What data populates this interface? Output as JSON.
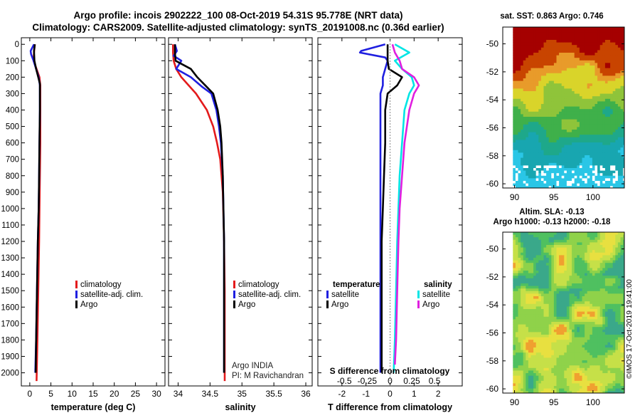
{
  "figure": {
    "title_line1": "Argo profile: incois 2902222_100 08-Oct-2019 54.31S 95.778E (NRT data)",
    "title_line2": "Climatology: CARS2009. Satellite-adjusted climatology: synTS_20191008.nc (0.36d earlier)",
    "sst_title": "sat. SST: 0.863 Argo: 0.746",
    "sla_title1": "Altim. SLA: -0.13",
    "sla_title2": "Argo h1000: -0.13 h2000: -0.18",
    "credit": "©IMOS 17-Oct-2019 19:41:00",
    "argo_note1": "Argo INDIA",
    "argo_note2": "PI: M Ravichandran"
  },
  "colors": {
    "climatology": "#e31a1c",
    "satellite": "#1f1fe0",
    "argo": "#000000",
    "satellite_salinity": "#00e5e5",
    "argo_salinity": "#e01fe0"
  },
  "chart_data": [
    {
      "type": "line",
      "name": "temperature-profile",
      "xlabel": "temperature (deg C)",
      "ylabel": "",
      "xlim": [
        -2,
        32
      ],
      "ylim": [
        2080,
        -40
      ],
      "xticks": [
        0,
        5,
        10,
        15,
        20,
        25,
        30
      ],
      "yticks": [
        0,
        100,
        200,
        300,
        400,
        500,
        600,
        700,
        800,
        900,
        1000,
        1100,
        1200,
        1300,
        1400,
        1500,
        1600,
        1700,
        1800,
        1900,
        2000
      ],
      "legend": [
        "climatology",
        "satellite-adj. clim.",
        "Argo"
      ],
      "series": [
        {
          "name": "climatology",
          "color_key": "climatology",
          "depth": [
            0,
            50,
            100,
            150,
            200,
            250,
            300,
            400,
            600,
            800,
            1000,
            1200,
            1500,
            1800,
            2050
          ],
          "values": [
            1.2,
            1.0,
            0.9,
            1.6,
            2.3,
            2.5,
            2.5,
            2.5,
            2.5,
            2.4,
            2.3,
            2.2,
            2.0,
            1.8,
            1.6
          ]
        },
        {
          "name": "satellite-adj. clim.",
          "color_key": "satellite",
          "depth": [
            0,
            40,
            60,
            100,
            150,
            200,
            250,
            300,
            400,
            600,
            800,
            1000,
            1200,
            1500,
            1800,
            2000
          ],
          "values": [
            1.0,
            0.2,
            0.3,
            0.9,
            1.5,
            2.1,
            2.4,
            2.4,
            2.4,
            2.3,
            2.2,
            2.1,
            1.9,
            1.7,
            1.5,
            1.3
          ]
        },
        {
          "name": "Argo",
          "color_key": "argo",
          "depth": [
            0,
            40,
            100,
            150,
            200,
            240,
            300,
            400,
            600,
            800,
            1000,
            1200,
            1500,
            1800,
            2000
          ],
          "values": [
            1.2,
            1.0,
            1.1,
            1.5,
            2.0,
            2.4,
            2.4,
            2.4,
            2.3,
            2.2,
            2.1,
            1.9,
            1.7,
            1.5,
            1.4
          ]
        }
      ]
    },
    {
      "type": "line",
      "name": "salinity-profile",
      "xlabel": "salinity",
      "xlim": [
        33.85,
        36.1
      ],
      "ylim": [
        2080,
        -40
      ],
      "xticks": [
        34,
        34.5,
        35,
        35.5,
        36
      ],
      "xticklabels": [
        "34",
        "34.5",
        "35",
        "35.5",
        "36"
      ],
      "legend": [
        "climatology",
        "satellite-adj. clim.",
        "Argo"
      ],
      "series": [
        {
          "name": "climatology",
          "color_key": "climatology",
          "depth": [
            0,
            50,
            100,
            150,
            200,
            300,
            400,
            500,
            600,
            700,
            900,
            1200,
            1500,
            1800,
            2050
          ],
          "values": [
            33.92,
            33.92,
            33.93,
            33.97,
            34.05,
            34.28,
            34.45,
            34.55,
            34.61,
            34.66,
            34.7,
            34.72,
            34.73,
            34.73,
            34.73
          ]
        },
        {
          "name": "satellite-adj. clim.",
          "color_key": "satellite",
          "depth": [
            0,
            40,
            70,
            100,
            150,
            200,
            260,
            300,
            400,
            500,
            600,
            800,
            1000,
            1200,
            1500,
            1800,
            2000
          ],
          "values": [
            33.95,
            33.98,
            33.93,
            34.05,
            33.97,
            34.2,
            34.38,
            34.52,
            34.6,
            34.64,
            34.67,
            34.7,
            34.71,
            34.72,
            34.72,
            34.72,
            34.72
          ]
        },
        {
          "name": "Argo",
          "color_key": "argo",
          "depth": [
            0,
            50,
            100,
            150,
            200,
            260,
            300,
            400,
            500,
            600,
            800,
            1000,
            1200,
            1500,
            1800,
            2000
          ],
          "values": [
            33.95,
            33.95,
            33.96,
            34.2,
            34.3,
            34.45,
            34.55,
            34.62,
            34.66,
            34.68,
            34.7,
            34.71,
            34.72,
            34.72,
            34.72,
            34.72
          ]
        }
      ]
    },
    {
      "type": "line",
      "name": "difference-profile",
      "xlabel": "T difference from climatology",
      "top_label": "S difference from climatology",
      "xlim": [
        -3,
        3
      ],
      "ylim": [
        2080,
        -40
      ],
      "xticks": [
        -2,
        -1,
        0,
        1,
        2
      ],
      "s_ticks": [
        -0.5,
        -0.25,
        0,
        0.25,
        0.5
      ],
      "s_ticklabels": [
        "-0.5",
        "-0.25",
        "0",
        "0.25",
        "0.5"
      ],
      "s_tick_at_t": [
        -1.9,
        -0.95,
        0,
        0.9,
        1.85
      ],
      "legend_left_title": "temperature",
      "legend_right_title": "salinity",
      "legend_left": [
        "satellite",
        "Argo"
      ],
      "legend_right": [
        "satellite",
        "Argo"
      ],
      "series": [
        {
          "name": "temperature satellite",
          "color_key": "satellite",
          "depth": [
            0,
            40,
            50,
            80,
            100,
            150,
            200,
            250,
            300,
            400,
            600,
            800,
            1000,
            1200,
            1500,
            1800,
            2000
          ],
          "values": [
            -0.2,
            -1.2,
            -1.25,
            -0.2,
            -0.1,
            -0.2,
            -0.3,
            -0.3,
            -0.4,
            -0.4,
            -0.4,
            -0.4,
            -0.4,
            -0.4,
            -0.4,
            -0.4,
            -0.4
          ]
        },
        {
          "name": "temperature Argo",
          "color_key": "argo",
          "depth": [
            0,
            50,
            100,
            150,
            200,
            250,
            300,
            400,
            600,
            800,
            1000,
            1200,
            1500,
            1800,
            2000
          ],
          "values": [
            -0.1,
            -0.1,
            -0.1,
            -0.05,
            0.5,
            0.3,
            -0.1,
            -0.2,
            -0.2,
            -0.25,
            -0.3,
            -0.35,
            -0.35,
            -0.35,
            -0.35
          ]
        },
        {
          "name": "salinity satellite",
          "color_key": "satellite_salinity",
          "depth": [
            0,
            50,
            100,
            150,
            200,
            250,
            300,
            400,
            600,
            800,
            1000,
            1200,
            1500,
            1800,
            2000
          ],
          "values": [
            0.2,
            0.8,
            0.2,
            0.5,
            0.9,
            1.0,
            0.8,
            0.6,
            0.5,
            0.4,
            0.35,
            0.3,
            0.25,
            0.2,
            0.15
          ]
        },
        {
          "name": "salinity Argo",
          "color_key": "argo_salinity",
          "depth": [
            0,
            50,
            100,
            150,
            200,
            250,
            300,
            400,
            600,
            800,
            1000,
            1200,
            1500,
            1800,
            1950
          ],
          "values": [
            0.1,
            0.2,
            0.4,
            0.5,
            1.0,
            1.2,
            1.0,
            0.8,
            0.6,
            0.5,
            0.4,
            0.35,
            0.3,
            0.25,
            0.2
          ]
        }
      ]
    },
    {
      "type": "heatmap",
      "name": "sst-map",
      "title": "sat. SST: 0.863 Argo: 0.746",
      "xlim": [
        88.5,
        104
      ],
      "ylim": [
        -60.3,
        -48.8
      ],
      "xticks": [
        90,
        95,
        100
      ],
      "yticks": [
        -50,
        -52,
        -54,
        -56,
        -58,
        -60
      ]
    },
    {
      "type": "heatmap",
      "name": "sla-map",
      "title": "Altim. SLA: -0.13",
      "xlim": [
        88.5,
        104
      ],
      "ylim": [
        -60.3,
        -48.8
      ],
      "xticks": [
        90,
        95,
        100
      ],
      "yticks": [
        -50,
        -52,
        -54,
        -56,
        -58,
        -60
      ]
    }
  ]
}
